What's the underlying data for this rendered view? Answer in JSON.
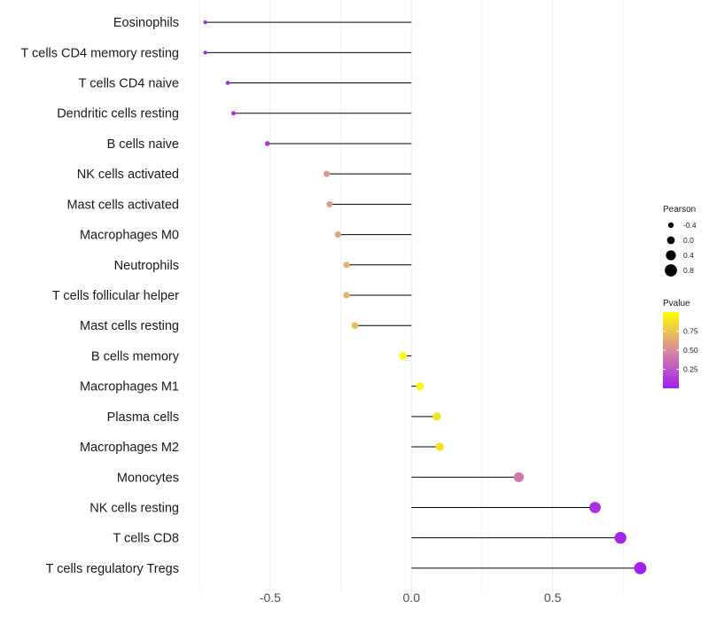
{
  "chart_data": {
    "type": "lollipop",
    "title": "",
    "xlabel": "",
    "ylabel": "",
    "xlim": [
      -0.76,
      0.84
    ],
    "x_ticks": [
      -0.5,
      0.0,
      0.5
    ],
    "x_tick_labels": [
      "-0.5",
      "0.0",
      "0.5"
    ],
    "grid": true,
    "categories": [
      "Eosinophils",
      "T cells CD4 memory resting",
      "T cells CD4 naive",
      "Dendritic cells resting",
      "B cells naive",
      "NK cells activated",
      "Mast cells activated",
      "Macrophages M0",
      "Neutrophils",
      "T cells follicular helper",
      "Mast cells resting",
      "B cells memory",
      "Macrophages M1",
      "Plasma cells",
      "Macrophages M2",
      "Monocytes",
      "NK cells resting",
      "T cells CD8",
      "T cells regulatory  Tregs"
    ],
    "pearson": [
      -0.73,
      -0.73,
      -0.65,
      -0.63,
      -0.51,
      -0.3,
      -0.29,
      -0.26,
      -0.23,
      -0.23,
      -0.2,
      -0.03,
      0.03,
      0.09,
      0.1,
      0.38,
      0.65,
      0.74,
      0.81
    ],
    "pvalue": [
      0.02,
      0.02,
      0.05,
      0.06,
      0.12,
      0.55,
      0.57,
      0.62,
      0.68,
      0.68,
      0.72,
      0.99,
      0.98,
      0.88,
      0.86,
      0.42,
      0.08,
      0.03,
      0.01
    ],
    "legend": {
      "size_title": "Pearson",
      "size_labels": [
        "-0.4",
        "0.0",
        "0.4",
        "0.8"
      ],
      "color_title": "Pvalue",
      "color_labels": [
        "0.75",
        "0.50",
        "0.25"
      ],
      "color_label_values": [
        0.75,
        0.5,
        0.25
      ],
      "color_range": [
        0.0,
        1.0
      ],
      "color_low": "#a020f0",
      "color_mid": "#d88a9e",
      "color_high": "#ffff00",
      "position": "right"
    },
    "colors": {
      "grid": "#ebebeb",
      "segment": "#000000",
      "text": "#1a1a1a",
      "tick_text": "#4d4d4d"
    }
  }
}
